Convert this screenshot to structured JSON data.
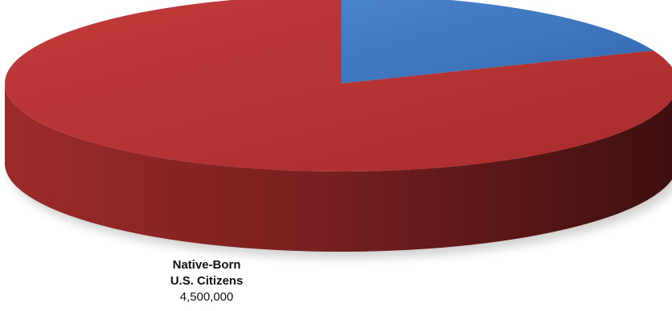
{
  "chart_data": {
    "type": "pie",
    "style": "3d",
    "slices": [
      {
        "label_line1": "Native-Born",
        "label_line2": "U.S. Citizens",
        "value": 4500000,
        "value_label": "4,500,000",
        "color": "#b83333"
      },
      {
        "label_line1": "",
        "label_line2": "",
        "value": 1050000,
        "value_label": "",
        "color": "#3f78c3"
      }
    ]
  }
}
